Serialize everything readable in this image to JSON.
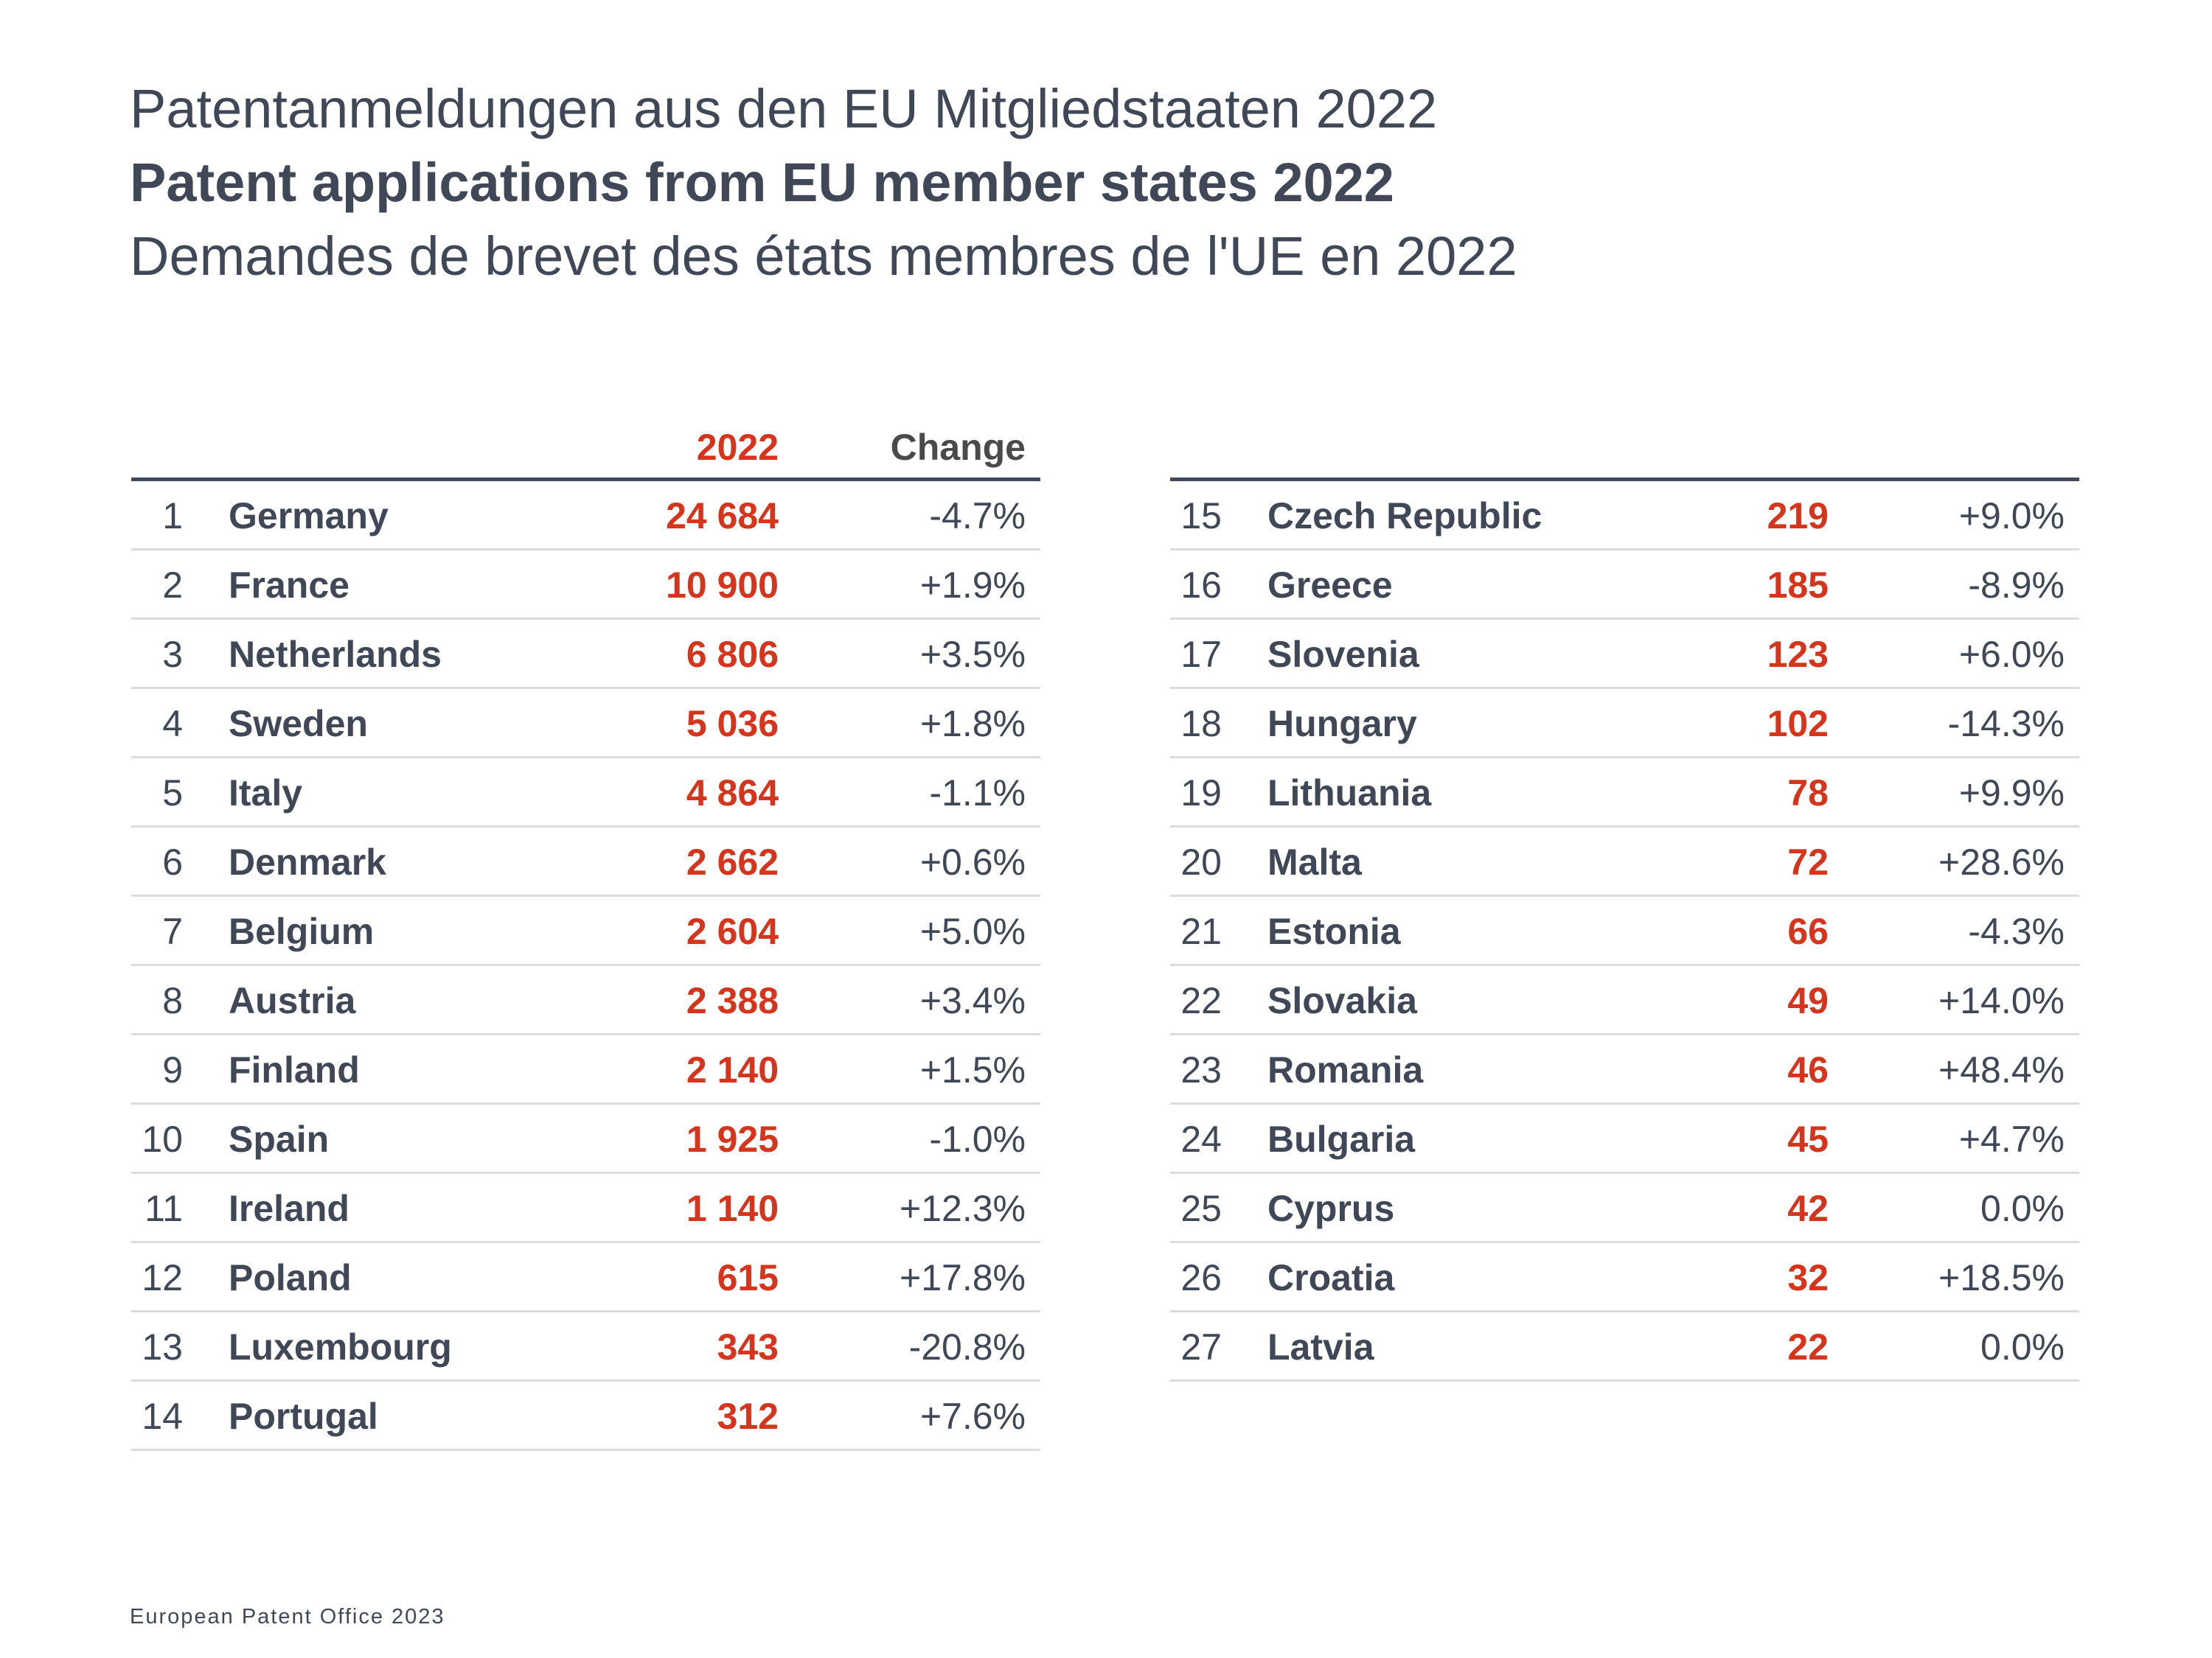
{
  "titles": {
    "german": "Patentanmeldungen aus den EU Mitgliedstaaten 2022",
    "english": "Patent applications from EU member states 2022",
    "french": "Demandes de brevet des états membres de l'UE en 2022"
  },
  "table": {
    "columns": {
      "rank": "",
      "country": "",
      "year": "2022",
      "change": "Change"
    },
    "left_rows": [
      {
        "rank": "1",
        "country": "Germany",
        "value": "24 684",
        "change": "-4.7%"
      },
      {
        "rank": "2",
        "country": "France",
        "value": "10 900",
        "change": "+1.9%"
      },
      {
        "rank": "3",
        "country": "Netherlands",
        "value": "6 806",
        "change": "+3.5%"
      },
      {
        "rank": "4",
        "country": "Sweden",
        "value": "5 036",
        "change": "+1.8%"
      },
      {
        "rank": "5",
        "country": "Italy",
        "value": "4 864",
        "change": "-1.1%"
      },
      {
        "rank": "6",
        "country": "Denmark",
        "value": "2 662",
        "change": "+0.6%"
      },
      {
        "rank": "7",
        "country": "Belgium",
        "value": "2 604",
        "change": "+5.0%"
      },
      {
        "rank": "8",
        "country": "Austria",
        "value": "2 388",
        "change": "+3.4%"
      },
      {
        "rank": "9",
        "country": "Finland",
        "value": "2 140",
        "change": "+1.5%"
      },
      {
        "rank": "10",
        "country": "Spain",
        "value": "1 925",
        "change": "-1.0%"
      },
      {
        "rank": "11",
        "country": "Ireland",
        "value": "1 140",
        "change": "+12.3%"
      },
      {
        "rank": "12",
        "country": "Poland",
        "value": "615",
        "change": "+17.8%"
      },
      {
        "rank": "13",
        "country": "Luxembourg",
        "value": "343",
        "change": "-20.8%"
      },
      {
        "rank": "14",
        "country": "Portugal",
        "value": "312",
        "change": "+7.6%"
      }
    ],
    "right_rows": [
      {
        "rank": "15",
        "country": "Czech Republic",
        "value": "219",
        "change": "+9.0%"
      },
      {
        "rank": "16",
        "country": "Greece",
        "value": "185",
        "change": "-8.9%"
      },
      {
        "rank": "17",
        "country": "Slovenia",
        "value": "123",
        "change": "+6.0%"
      },
      {
        "rank": "18",
        "country": "Hungary",
        "value": "102",
        "change": "-14.3%"
      },
      {
        "rank": "19",
        "country": "Lithuania",
        "value": "78",
        "change": "+9.9%"
      },
      {
        "rank": "20",
        "country": "Malta",
        "value": "72",
        "change": "+28.6%"
      },
      {
        "rank": "21",
        "country": "Estonia",
        "value": "66",
        "change": "-4.3%"
      },
      {
        "rank": "22",
        "country": "Slovakia",
        "value": "49",
        "change": "+14.0%"
      },
      {
        "rank": "23",
        "country": "Romania",
        "value": "46",
        "change": "+48.4%"
      },
      {
        "rank": "24",
        "country": "Bulgaria",
        "value": "45",
        "change": "+4.7%"
      },
      {
        "rank": "25",
        "country": "Cyprus",
        "value": "42",
        "change": "0.0%"
      },
      {
        "rank": "26",
        "country": "Croatia",
        "value": "32",
        "change": "+18.5%"
      },
      {
        "rank": "27",
        "country": "Latvia",
        "value": "22",
        "change": "0.0%"
      }
    ]
  },
  "colors": {
    "text": "#404857",
    "accent_red": "#d4351c",
    "rule_dark": "#404857",
    "rule_light": "#dcdcdc"
  },
  "footer": {
    "source": "European Patent Office 2023"
  }
}
